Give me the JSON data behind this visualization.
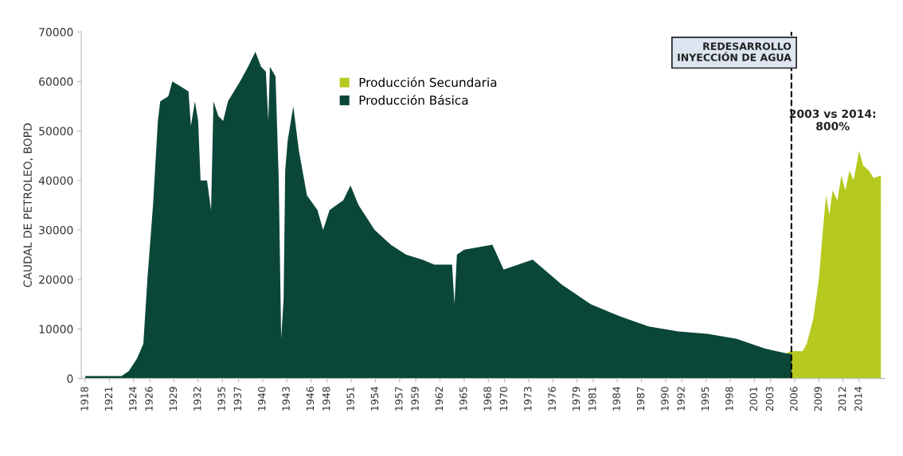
{
  "chart_data": {
    "type": "area",
    "ylabel": "CAUDAL DE PETROLEO, BOPD",
    "xlim": [
      1917.5,
      2017.2
    ],
    "ylim": [
      0,
      70000
    ],
    "yticks": [
      0,
      10000,
      20000,
      30000,
      40000,
      50000,
      60000,
      70000
    ],
    "xticks": [
      1918,
      1921,
      1924,
      1926,
      1929,
      1932,
      1935,
      1937,
      1940,
      1943,
      1946,
      1948,
      1951,
      1954,
      1957,
      1959,
      1962,
      1965,
      1968,
      1970,
      1973,
      1976,
      1979,
      1981,
      1984,
      1987,
      1990,
      1992,
      1995,
      1998,
      2001,
      2003,
      2006,
      2009,
      2012,
      2014
    ],
    "legend": "top",
    "grid": false,
    "series": [
      {
        "name": "Producción Secundaria",
        "color": "#b5c91f",
        "x": [
          2004.8,
          2005.5,
          2007.0,
          2007.5,
          2008.3,
          2009.0,
          2009.5,
          2009.9,
          2010.3,
          2010.7,
          2011.3,
          2011.8,
          2012.3,
          2012.8,
          2013.3,
          2014.0,
          2014.5,
          2015.2,
          2015.8,
          2016.7
        ],
        "values": [
          5000,
          5500,
          5500,
          7000,
          12000,
          20000,
          30000,
          37000,
          33000,
          38000,
          36000,
          41000,
          38000,
          42000,
          40000,
          46000,
          43000,
          42000,
          40500,
          41000
        ]
      },
      {
        "name": "Producción Básica",
        "color": "#0b4739",
        "x": [
          1918.0,
          1922.5,
          1923.4,
          1924.4,
          1925.2,
          1925.7,
          1926.4,
          1927.0,
          1927.3,
          1928.3,
          1928.8,
          1929.8,
          1930.8,
          1931.1,
          1931.6,
          1932.0,
          1932.3,
          1933.1,
          1933.6,
          1933.9,
          1934.5,
          1935.1,
          1935.7,
          1937.2,
          1938.2,
          1939.1,
          1939.8,
          1940.4,
          1940.7,
          1940.9,
          1941.6,
          1942.0,
          1942.3,
          1942.6,
          1942.8,
          1943.1,
          1943.8,
          1944.5,
          1945.5,
          1946.8,
          1947.5,
          1948.3,
          1950.0,
          1950.9,
          1951.9,
          1953.9,
          1955.9,
          1957.8,
          1959.8,
          1961.3,
          1963.5,
          1963.8,
          1964.1,
          1965.0,
          1968.5,
          1969.9,
          1973.5,
          1977.1,
          1980.7,
          1984.4,
          1987.9,
          1991.6,
          1995.2,
          1998.8,
          2002.4,
          2005.2,
          2005.6
        ],
        "values": [
          500,
          500,
          1500,
          4000,
          7000,
          20000,
          35000,
          52000,
          56000,
          57000,
          60000,
          59000,
          58000,
          51000,
          56000,
          52000,
          40000,
          40000,
          34000,
          56000,
          53000,
          52000,
          56000,
          60000,
          63000,
          66000,
          63000,
          62000,
          52000,
          63000,
          61000,
          40000,
          8000,
          16000,
          42000,
          48000,
          55000,
          46000,
          37000,
          34000,
          30000,
          34000,
          36000,
          39000,
          35000,
          30000,
          27000,
          25000,
          24000,
          23000,
          23000,
          15000,
          25000,
          26000,
          27000,
          22000,
          24000,
          19000,
          15000,
          12500,
          10500,
          9500,
          9000,
          8000,
          6000,
          5000,
          5000
        ]
      }
    ],
    "ref_lines": [
      {
        "axis": "x",
        "value": 2005.6,
        "label": "REDESARROLLO\nINYECCIÓN DE AGUA",
        "color": "#000000",
        "line_style": "dashed"
      }
    ],
    "annotations": [
      "2003 vs 2014:\n800%"
    ]
  }
}
